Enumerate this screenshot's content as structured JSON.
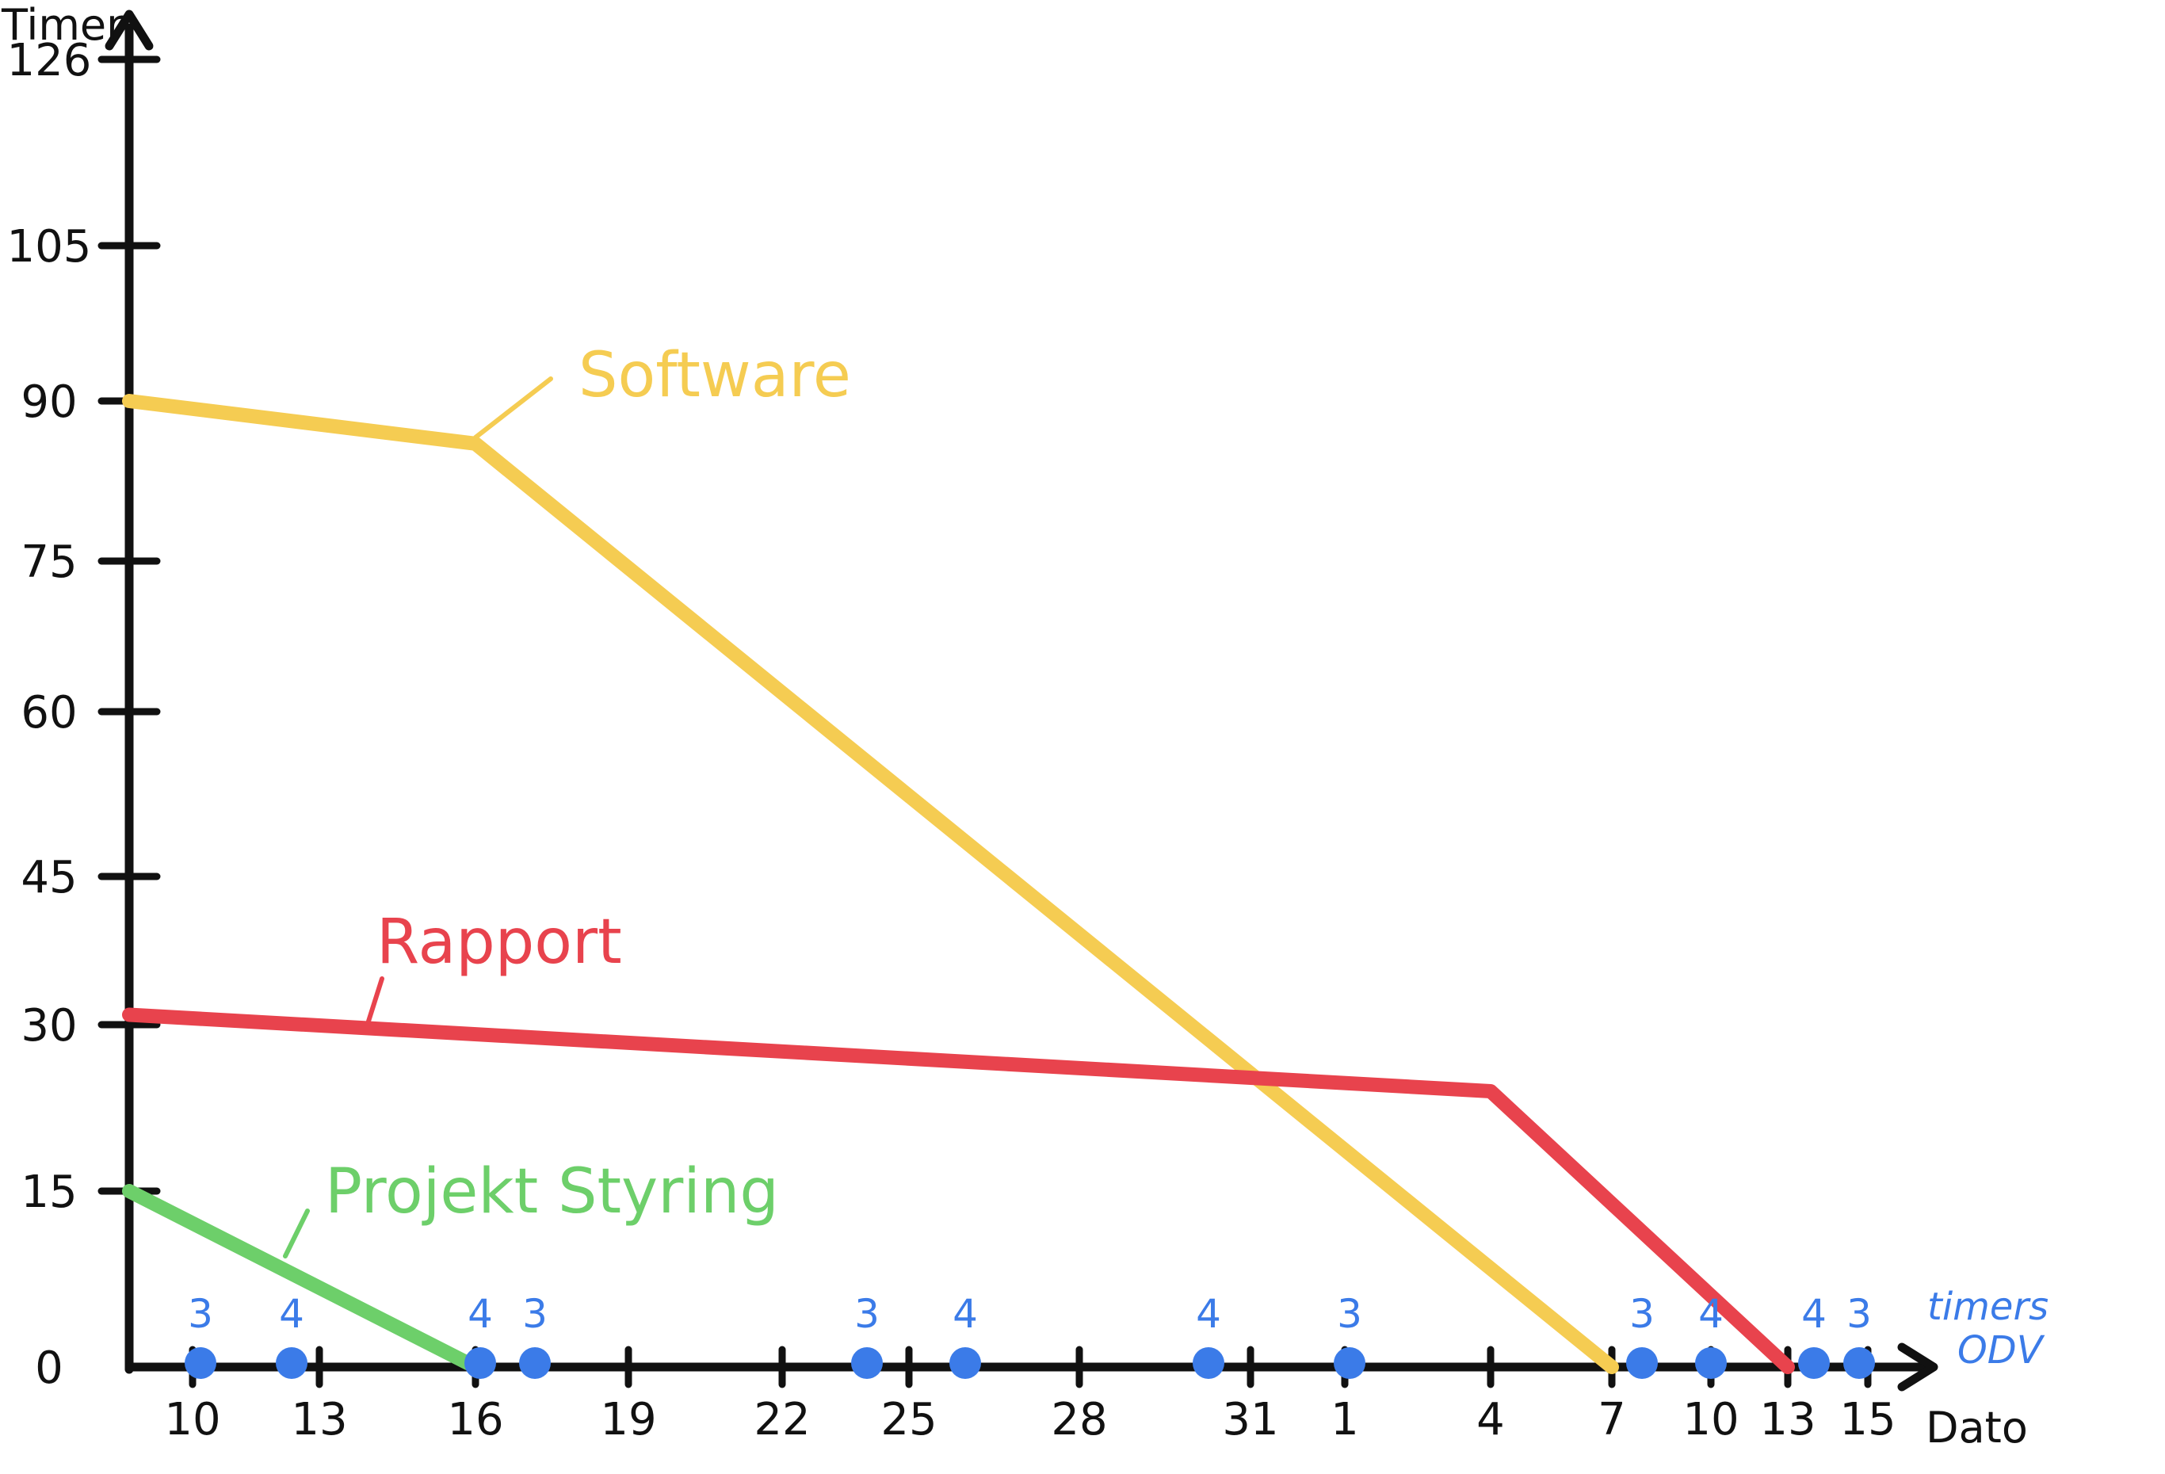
{
  "chart_data": {
    "type": "line",
    "title": "",
    "ylabel": "Timer",
    "xlabel": "Dato",
    "ylim": [
      0,
      126
    ],
    "y_ticks": [
      "0",
      "15",
      "30",
      "45",
      "60",
      "75",
      "90",
      "105",
      "126"
    ],
    "x_ticks": [
      "10",
      "13",
      "16",
      "19",
      "22",
      "25",
      "28",
      "31",
      "1",
      "4",
      "7",
      "10",
      "13",
      "15"
    ],
    "series": [
      {
        "name": "Software",
        "color": "#f5cc52",
        "points": [
          {
            "x": "10",
            "y": 90
          },
          {
            "x": "16",
            "y": 86
          },
          {
            "x": "7",
            "y": 0
          }
        ]
      },
      {
        "name": "Rapport",
        "color": "#e8434d",
        "points": [
          {
            "x": "10",
            "y": 31
          },
          {
            "x": "4",
            "y": 24
          },
          {
            "x": "13",
            "y": 0
          }
        ]
      },
      {
        "name": "Projekt Styring",
        "color": "#6dcf6a",
        "points": [
          {
            "x": "10",
            "y": 15
          },
          {
            "x": "16",
            "y": 0
          }
        ]
      }
    ],
    "dots_label": "timers ODV",
    "dots_color": "#3b7be8",
    "dots": [
      {
        "x": "10",
        "label": "3"
      },
      {
        "x": "13",
        "label": "4"
      },
      {
        "x": "16",
        "label": "4"
      },
      {
        "x": "16",
        "label": "3"
      },
      {
        "x": "25",
        "label": "3"
      },
      {
        "x": "25",
        "label": "4"
      },
      {
        "x": "31",
        "label": "4"
      },
      {
        "x": "1",
        "label": "3"
      },
      {
        "x": "7",
        "label": "3"
      },
      {
        "x": "10",
        "label": "4"
      },
      {
        "x": "13",
        "label": "4"
      },
      {
        "x": "15",
        "label": "3"
      }
    ]
  }
}
